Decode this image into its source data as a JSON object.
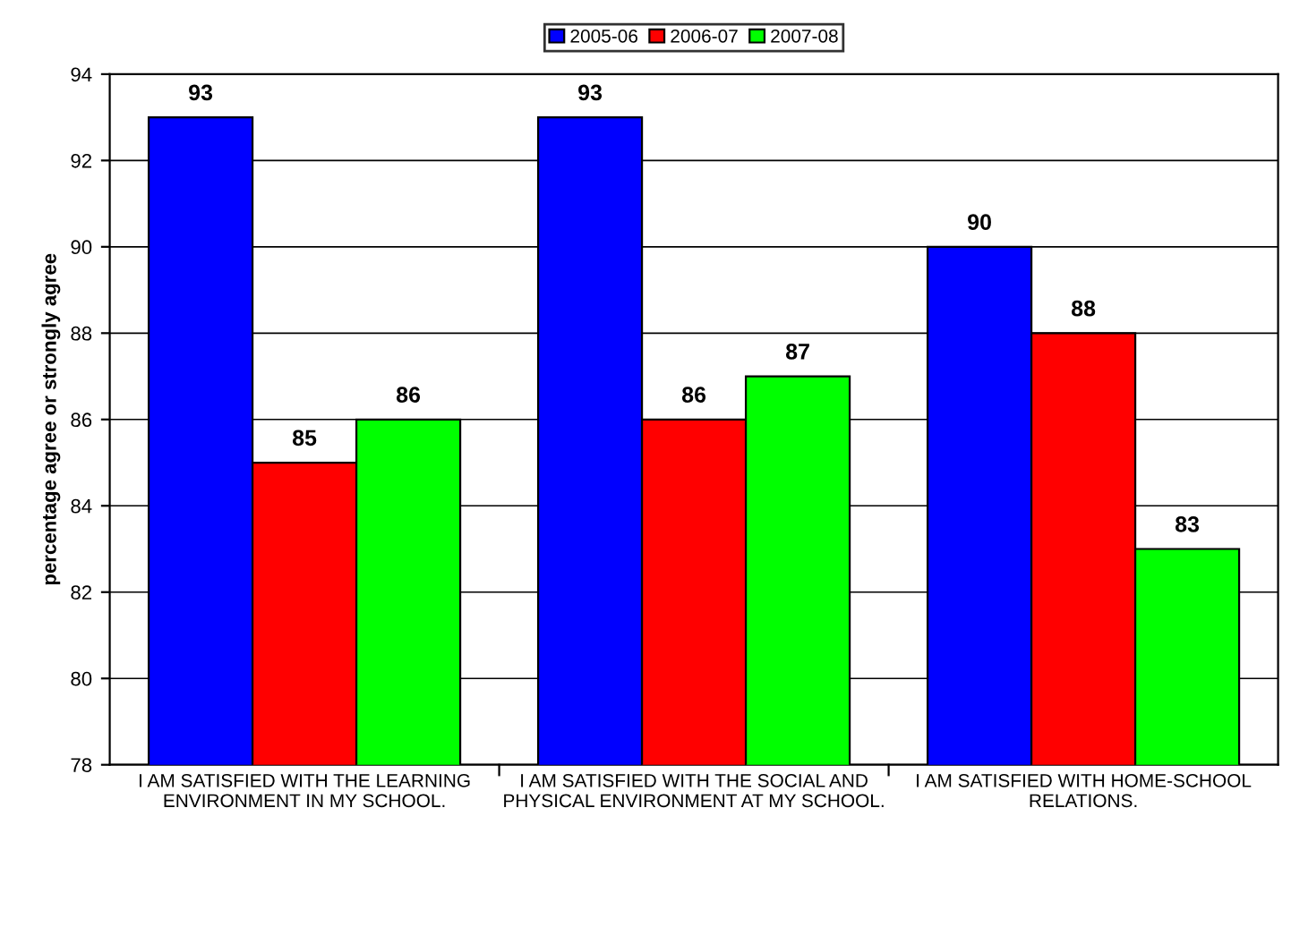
{
  "chart_data": {
    "type": "bar",
    "ylabel": "percentage agree or strongly agree",
    "categories": [
      "I AM SATISFIED WITH THE LEARNING ENVIRONMENT IN MY SCHOOL.",
      "I AM SATISFIED WITH THE SOCIAL AND PHYSICAL ENVIRONMENT AT MY SCHOOL.",
      "I AM SATISFIED WITH HOME-SCHOOL RELATIONS."
    ],
    "series": [
      {
        "name": "2005-06",
        "color": "#0000ff",
        "values": [
          93,
          93,
          90
        ]
      },
      {
        "name": "2006-07",
        "color": "#ff0000",
        "values": [
          85,
          86,
          88
        ]
      },
      {
        "name": "2007-08",
        "color": "#00ff00",
        "values": [
          86,
          87,
          83
        ]
      }
    ],
    "ylim": [
      78,
      94
    ],
    "yticks": [
      78,
      80,
      82,
      84,
      86,
      88,
      90,
      92,
      94
    ],
    "grid": "y",
    "legend": "top",
    "data_labels": true
  }
}
